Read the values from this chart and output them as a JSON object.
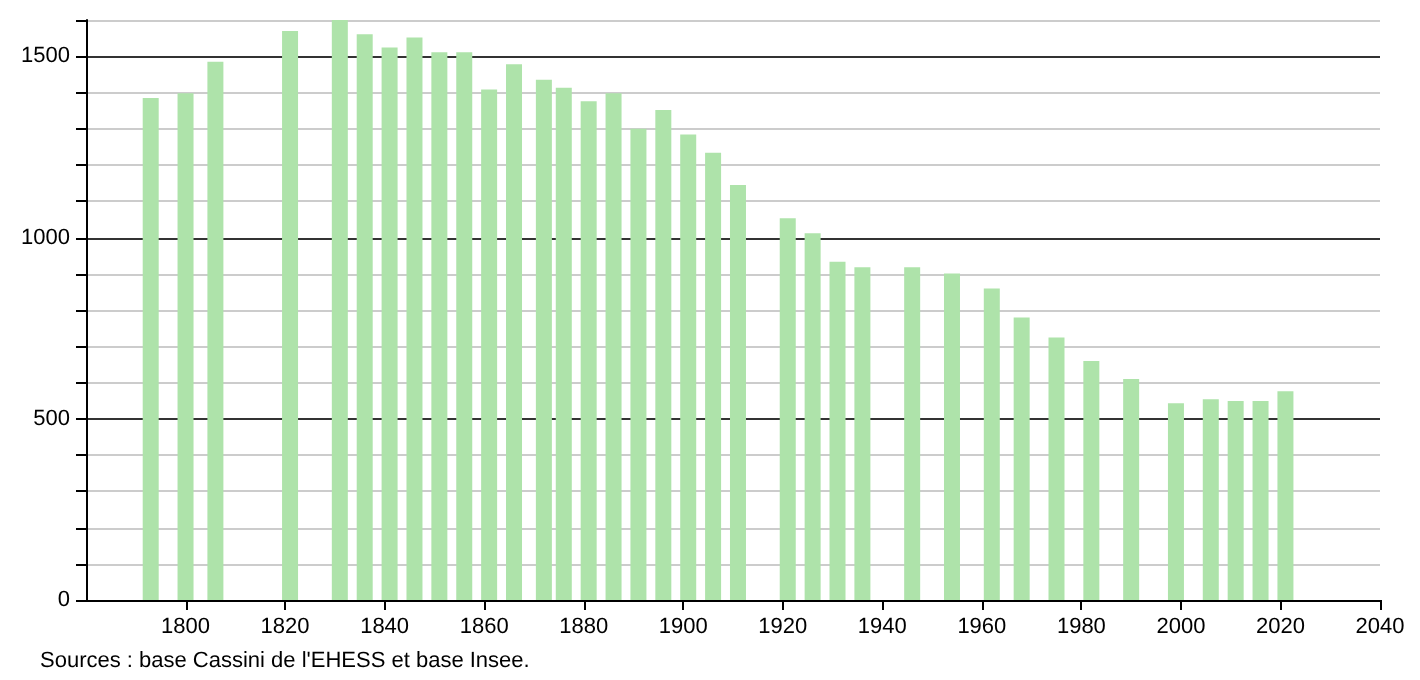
{
  "chart_data": {
    "type": "bar",
    "x": [
      1793,
      1800,
      1806,
      1821,
      1831,
      1836,
      1841,
      1846,
      1851,
      1856,
      1861,
      1866,
      1872,
      1876,
      1881,
      1886,
      1891,
      1896,
      1901,
      1906,
      1911,
      1921,
      1926,
      1931,
      1936,
      1946,
      1954,
      1962,
      1968,
      1975,
      1982,
      1990,
      1999,
      2006,
      2011,
      2016,
      2021
    ],
    "values": [
      1385,
      1398,
      1485,
      1570,
      1600,
      1561,
      1524,
      1552,
      1511,
      1511,
      1408,
      1478,
      1435,
      1413,
      1376,
      1398,
      1300,
      1352,
      1284,
      1234,
      1145,
      1053,
      1012,
      933,
      918,
      918,
      901,
      859,
      779,
      724,
      659,
      610,
      543,
      554,
      549,
      549,
      576
    ],
    "color": "#aee3aa",
    "xlim": [
      1780,
      2040
    ],
    "xticks": [
      1800,
      1820,
      1840,
      1860,
      1880,
      1900,
      1920,
      1940,
      1960,
      1980,
      2000,
      2020,
      2040
    ],
    "ylim": [
      0,
      1600
    ],
    "yticks": [
      0,
      {
        "value": 100,
        "label": null
      },
      {
        "value": 200,
        "label": null
      },
      {
        "value": 300,
        "label": null
      },
      {
        "value": 400,
        "label": null
      },
      500,
      {
        "value": 600,
        "label": null
      },
      {
        "value": 700,
        "label": null
      },
      {
        "value": 800,
        "label": null
      },
      {
        "value": 900,
        "label": null
      },
      1000,
      {
        "value": 1100,
        "label": null
      },
      {
        "value": 1200,
        "label": null
      },
      {
        "value": 1300,
        "label": null
      },
      {
        "value": 1400,
        "label": null
      },
      1500,
      {
        "value": 1600,
        "label": null
      }
    ],
    "grid": "y",
    "annotations": [
      "Sources : base Cassini de l'EHESS et base Insee."
    ]
  }
}
